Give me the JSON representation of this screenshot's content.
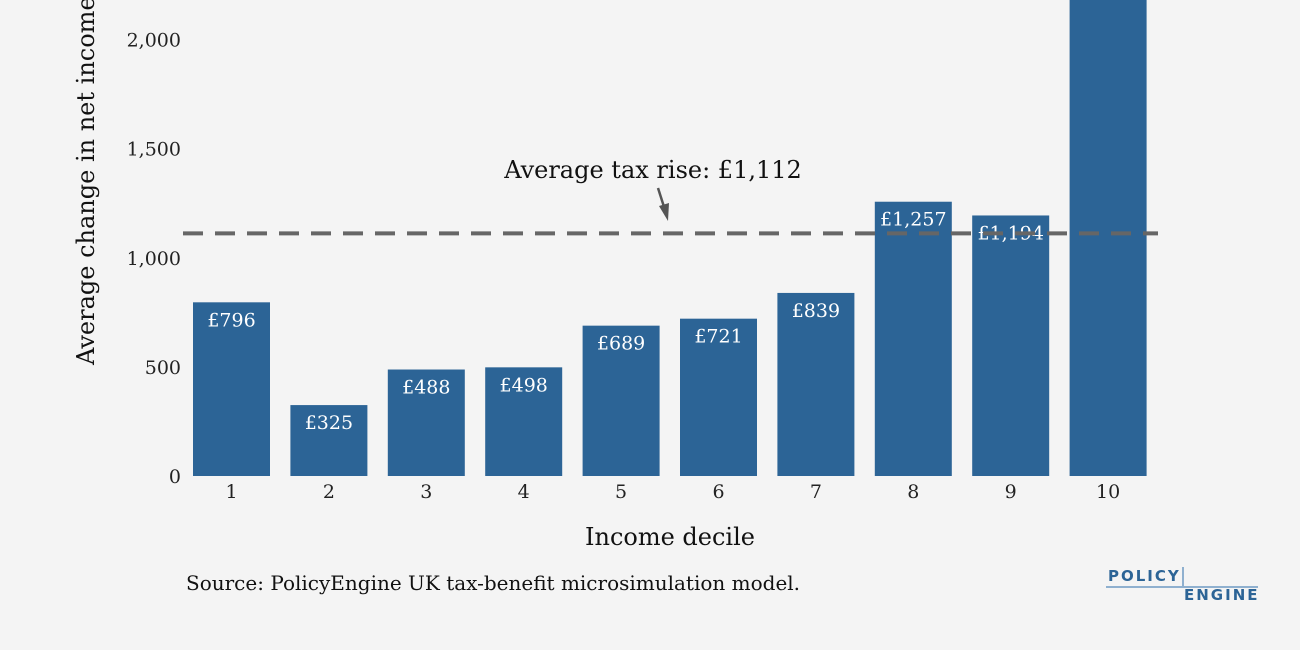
{
  "chart_data": {
    "type": "bar",
    "categories": [
      "1",
      "2",
      "3",
      "4",
      "5",
      "6",
      "7",
      "8",
      "9",
      "10"
    ],
    "values": [
      796,
      325,
      488,
      498,
      689,
      721,
      839,
      1257,
      1194,
      2400
    ],
    "bar_labels": [
      "£796",
      "£325",
      "£488",
      "£498",
      "£689",
      "£721",
      "£839",
      "£1,257",
      "£1,194",
      ""
    ],
    "xlabel": "Income decile",
    "ylabel": "Average change in net income",
    "yticks": [
      0,
      500,
      1000,
      1500,
      2000
    ],
    "ytick_labels": [
      "0",
      "500",
      "1,000",
      "1,500",
      "2,000"
    ],
    "ylim": [
      0,
      2180
    ],
    "reference_line": {
      "value": 1112,
      "label": "Average tax rise: £1,112",
      "style": "dashed"
    },
    "bar_color": "#2c6496",
    "grid": false
  },
  "source": "Source: PolicyEngine UK tax-benefit microsimulation model.",
  "logo": {
    "top": "POLICY",
    "bottom": "ENGINE"
  }
}
